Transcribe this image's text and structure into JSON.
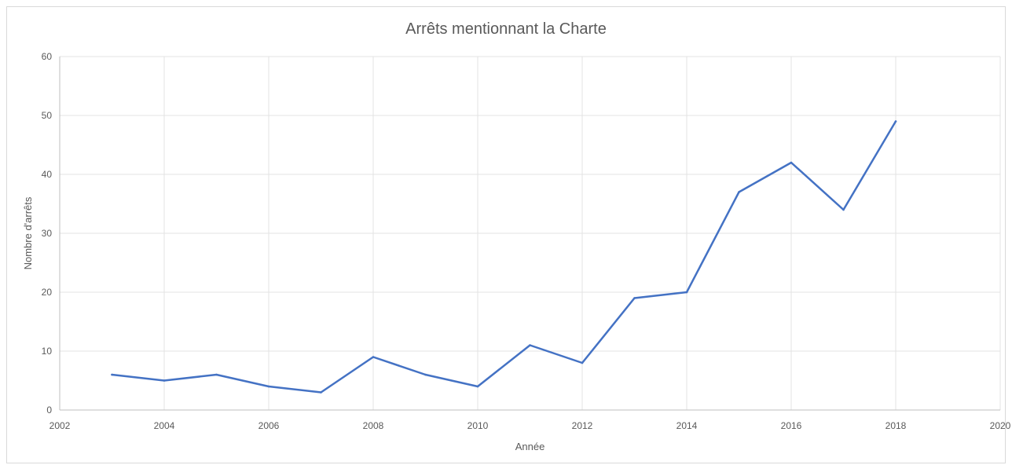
{
  "chart_data": {
    "type": "scatter",
    "mode": "lines",
    "title": "Arrêts mentionnant la Charte",
    "xlabel": "Année",
    "ylabel": "Nombre d'arrêts",
    "xlim": [
      2002,
      2020
    ],
    "ylim": [
      0,
      60
    ],
    "x_ticks": [
      2002,
      2004,
      2006,
      2008,
      2010,
      2012,
      2014,
      2016,
      2018,
      2020
    ],
    "y_ticks": [
      0,
      10,
      20,
      30,
      40,
      50,
      60
    ],
    "grid": true,
    "legend": "none",
    "line_color": "#4472c4",
    "series": [
      {
        "x": [
          2003,
          2004,
          2005,
          2006,
          2007,
          2008,
          2009,
          2010,
          2011,
          2012,
          2013,
          2014,
          2015,
          2016,
          2017,
          2018
        ],
        "y": [
          6,
          5,
          6,
          4,
          3,
          9,
          6,
          4,
          11,
          8,
          19,
          20,
          37,
          42,
          34,
          49
        ]
      }
    ]
  }
}
